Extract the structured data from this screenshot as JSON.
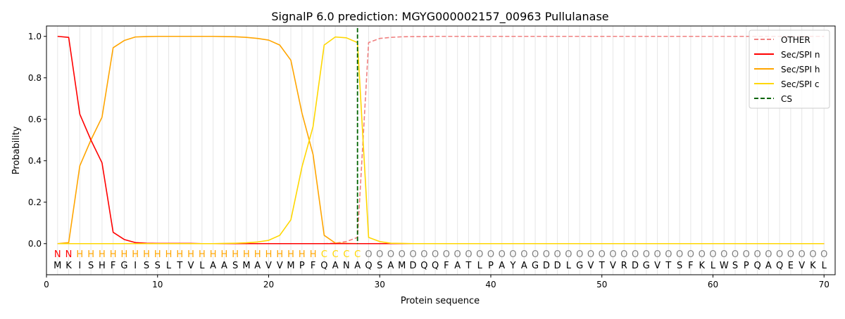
{
  "chart_data": {
    "type": "line",
    "title": "SignalP 6.0 prediction: MGYG000002157_00963 Pullulanase",
    "xlabel": "Protein sequence",
    "ylabel": "Probability",
    "xlim": [
      0,
      71
    ],
    "ylim": [
      -0.15,
      1.05
    ],
    "x_ticks": [
      0,
      10,
      20,
      30,
      40,
      50,
      60,
      70
    ],
    "y_ticks": [
      0.0,
      0.2,
      0.4,
      0.6,
      0.8,
      1.0
    ],
    "x_tick_labels": [
      "0",
      "10",
      "20",
      "30",
      "40",
      "50",
      "60",
      "70"
    ],
    "y_tick_labels": [
      "0.0",
      "0.2",
      "0.4",
      "0.6",
      "0.8",
      "1.0"
    ],
    "grid": "vertical lines at each residue",
    "legend_position": "top-right",
    "sequence": [
      "M",
      "K",
      "I",
      "S",
      "H",
      "F",
      "G",
      "I",
      "S",
      "S",
      "L",
      "T",
      "V",
      "L",
      "A",
      "A",
      "S",
      "M",
      "A",
      "V",
      "V",
      "M",
      "P",
      "F",
      "Q",
      "A",
      "N",
      "A",
      "Q",
      "S",
      "A",
      "M",
      "D",
      "Q",
      "Q",
      "F",
      "A",
      "T",
      "L",
      "P",
      "A",
      "Y",
      "A",
      "G",
      "D",
      "D",
      "L",
      "G",
      "V",
      "T",
      "V",
      "R",
      "D",
      "G",
      "V",
      "T",
      "S",
      "F",
      "K",
      "L",
      "W",
      "S",
      "P",
      "Q",
      "A",
      "Q",
      "E",
      "V",
      "K",
      "L"
    ],
    "labels": [
      "N",
      "N",
      "H",
      "H",
      "H",
      "H",
      "H",
      "H",
      "H",
      "H",
      "H",
      "H",
      "H",
      "H",
      "H",
      "H",
      "H",
      "H",
      "H",
      "H",
      "H",
      "H",
      "H",
      "H",
      "C",
      "C",
      "C",
      "C",
      "O",
      "O",
      "O",
      "O",
      "O",
      "O",
      "O",
      "O",
      "O",
      "O",
      "O",
      "O",
      "O",
      "O",
      "O",
      "O",
      "O",
      "O",
      "O",
      "O",
      "O",
      "O",
      "O",
      "O",
      "O",
      "O",
      "O",
      "O",
      "O",
      "O",
      "O",
      "O",
      "O",
      "O",
      "O",
      "O",
      "O",
      "O",
      "O",
      "O",
      "O",
      "O"
    ],
    "label_colors": {
      "N": "#ff0000",
      "H": "#ffa500",
      "C": "#ffd700",
      "O": "#808080"
    },
    "series": [
      {
        "name": "OTHER",
        "color": "#f08080",
        "dash": true,
        "values": [
          0,
          0,
          0,
          0,
          0,
          0,
          0,
          0,
          0,
          0,
          0,
          0,
          0,
          0,
          0,
          0,
          0,
          0,
          0,
          0,
          0,
          0,
          0,
          0,
          0,
          0.002,
          0.01,
          0.03,
          0.97,
          0.99,
          0.995,
          0.998,
          0.999,
          0.999,
          1,
          1,
          1,
          1,
          1,
          1,
          1,
          1,
          1,
          1,
          1,
          1,
          1,
          1,
          1,
          1,
          1,
          1,
          1,
          1,
          1,
          1,
          1,
          1,
          1,
          1,
          1,
          1,
          1,
          1,
          1,
          1,
          1,
          1,
          1,
          1
        ]
      },
      {
        "name": "Sec/SPI n",
        "color": "#ff0000",
        "dash": false,
        "values": [
          1.0,
          0.995,
          0.625,
          0.5,
          0.39,
          0.055,
          0.02,
          0.005,
          0.002,
          0.001,
          0.001,
          0.001,
          0.001,
          0,
          0,
          0,
          0,
          0,
          0,
          0,
          0,
          0,
          0,
          0,
          0,
          0,
          0,
          0,
          0,
          0,
          0,
          0,
          0,
          0,
          0,
          0,
          0,
          0,
          0,
          0,
          0,
          0,
          0,
          0,
          0,
          0,
          0,
          0,
          0,
          0,
          0,
          0,
          0,
          0,
          0,
          0,
          0,
          0,
          0,
          0,
          0,
          0,
          0,
          0,
          0,
          0,
          0,
          0,
          0,
          0
        ]
      },
      {
        "name": "Sec/SPI h",
        "color": "#ffa500",
        "dash": false,
        "values": [
          0,
          0.005,
          0.375,
          0.5,
          0.61,
          0.945,
          0.98,
          0.997,
          0.999,
          1,
          1,
          1,
          1,
          1,
          1,
          0.999,
          0.998,
          0.995,
          0.99,
          0.982,
          0.958,
          0.885,
          0.63,
          0.43,
          0.04,
          0.003,
          0.001,
          0,
          0,
          0,
          0,
          0,
          0,
          0,
          0,
          0,
          0,
          0,
          0,
          0,
          0,
          0,
          0,
          0,
          0,
          0,
          0,
          0,
          0,
          0,
          0,
          0,
          0,
          0,
          0,
          0,
          0,
          0,
          0,
          0,
          0,
          0,
          0,
          0,
          0,
          0,
          0,
          0,
          0,
          0
        ]
      },
      {
        "name": "Sec/SPI c",
        "color": "#ffd700",
        "dash": false,
        "values": [
          0,
          0,
          0,
          0,
          0,
          0,
          0,
          0,
          0,
          0,
          0,
          0,
          0,
          0,
          0,
          0.001,
          0.002,
          0.004,
          0.008,
          0.016,
          0.04,
          0.115,
          0.37,
          0.565,
          0.958,
          0.997,
          0.993,
          0.97,
          0.03,
          0.01,
          0.002,
          0.001,
          0,
          0,
          0,
          0,
          0,
          0,
          0,
          0,
          0,
          0,
          0,
          0,
          0,
          0,
          0,
          0,
          0,
          0,
          0,
          0,
          0,
          0,
          0,
          0,
          0,
          0,
          0,
          0,
          0,
          0,
          0,
          0,
          0,
          0,
          0,
          0,
          0,
          0
        ]
      },
      {
        "name": "CS",
        "color": "#006400",
        "dash": true,
        "vertical_at": 28
      }
    ]
  }
}
